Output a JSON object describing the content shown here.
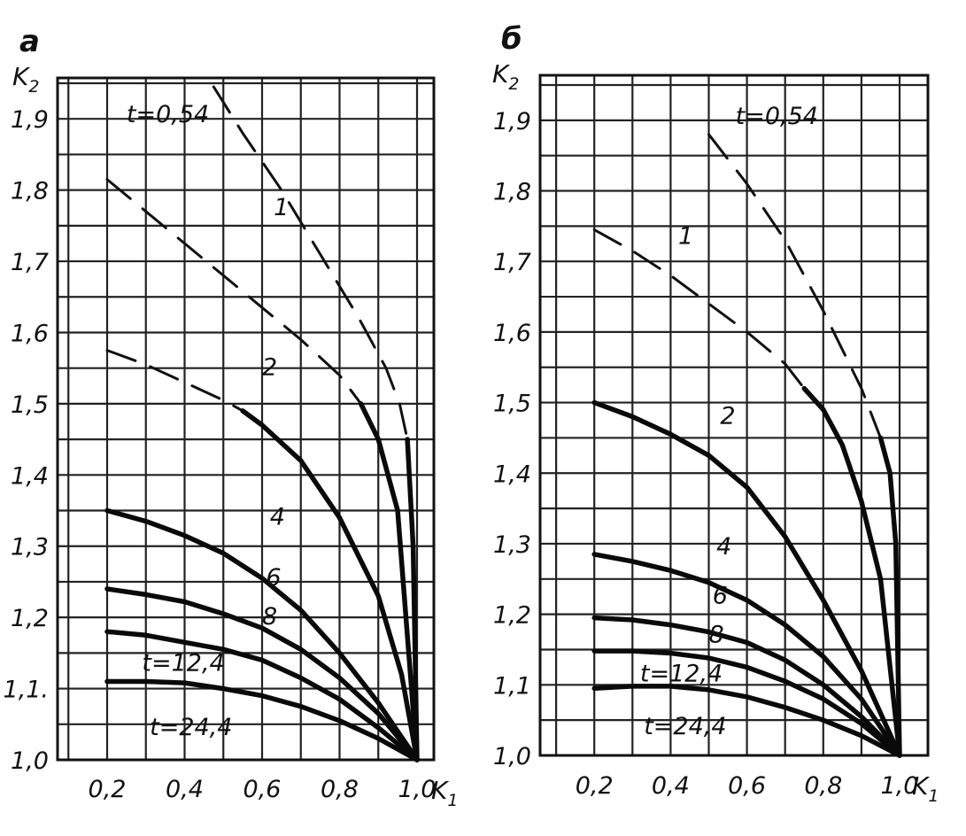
{
  "chart_data": [
    {
      "type": "line",
      "panel_label": "а",
      "ylabel": "K",
      "ylabel_sub": "2",
      "xlabel": "K",
      "xlabel_sub": "1",
      "xlim": [
        0.0,
        1.0
      ],
      "ylim": [
        1.0,
        1.95
      ],
      "grid": true,
      "xticks": [
        0.2,
        0.4,
        0.6,
        0.8,
        1.0
      ],
      "xtick_labels": [
        "0,2",
        "0,4",
        "0,6",
        "0,8",
        "1,0"
      ],
      "yticks": [
        1.0,
        1.1,
        1.2,
        1.3,
        1.4,
        1.5,
        1.6,
        1.7,
        1.8,
        1.9
      ],
      "ytick_labels": [
        "1,0",
        "1,1.",
        "1,2",
        "1,3",
        "1,4",
        "1,5",
        "1,6",
        "1,7",
        "1,8",
        "1,9"
      ],
      "series": [
        {
          "name": "t=0,54",
          "dashed_until": 1.45,
          "points": [
            [
              0.475,
              1.945
            ],
            [
              0.55,
              1.88
            ],
            [
              0.65,
              1.8
            ],
            [
              0.75,
              1.71
            ],
            [
              0.85,
              1.62
            ],
            [
              0.92,
              1.55
            ],
            [
              0.955,
              1.5
            ],
            [
              0.975,
              1.45
            ],
            [
              0.99,
              1.3
            ],
            [
              1.0,
              1.0
            ]
          ]
        },
        {
          "name": "1",
          "dashed_until": 1.5,
          "points": [
            [
              0.2,
              1.815
            ],
            [
              0.3,
              1.77
            ],
            [
              0.4,
              1.725
            ],
            [
              0.5,
              1.68
            ],
            [
              0.6,
              1.635
            ],
            [
              0.7,
              1.59
            ],
            [
              0.8,
              1.54
            ],
            [
              0.855,
              1.5
            ],
            [
              0.9,
              1.45
            ],
            [
              0.95,
              1.35
            ],
            [
              1.0,
              1.0
            ]
          ]
        },
        {
          "name": "2",
          "dashed_until": 1.49,
          "points": [
            [
              0.2,
              1.575
            ],
            [
              0.3,
              1.555
            ],
            [
              0.4,
              1.53
            ],
            [
              0.5,
              1.505
            ],
            [
              0.55,
              1.49
            ],
            [
              0.6,
              1.47
            ],
            [
              0.7,
              1.42
            ],
            [
              0.8,
              1.34
            ],
            [
              0.9,
              1.23
            ],
            [
              0.96,
              1.12
            ],
            [
              1.0,
              1.0
            ]
          ]
        },
        {
          "name": "4",
          "points": [
            [
              0.2,
              1.35
            ],
            [
              0.3,
              1.335
            ],
            [
              0.4,
              1.315
            ],
            [
              0.5,
              1.29
            ],
            [
              0.6,
              1.255
            ],
            [
              0.7,
              1.21
            ],
            [
              0.8,
              1.15
            ],
            [
              0.9,
              1.08
            ],
            [
              1.0,
              1.0
            ]
          ]
        },
        {
          "name": "6",
          "points": [
            [
              0.2,
              1.24
            ],
            [
              0.3,
              1.232
            ],
            [
              0.4,
              1.222
            ],
            [
              0.5,
              1.205
            ],
            [
              0.6,
              1.185
            ],
            [
              0.7,
              1.155
            ],
            [
              0.8,
              1.115
            ],
            [
              0.9,
              1.065
            ],
            [
              1.0,
              1.0
            ]
          ]
        },
        {
          "name": "8",
          "points": [
            [
              0.2,
              1.18
            ],
            [
              0.3,
              1.175
            ],
            [
              0.4,
              1.165
            ],
            [
              0.5,
              1.155
            ],
            [
              0.6,
              1.14
            ],
            [
              0.7,
              1.115
            ],
            [
              0.8,
              1.085
            ],
            [
              0.9,
              1.045
            ],
            [
              1.0,
              1.0
            ]
          ]
        },
        {
          "name": "t=12,4",
          "points": [
            [
              0.2,
              1.11
            ],
            [
              0.3,
              1.11
            ],
            [
              0.4,
              1.108
            ],
            [
              0.5,
              1.1
            ],
            [
              0.6,
              1.09
            ],
            [
              0.7,
              1.075
            ],
            [
              0.8,
              1.055
            ],
            [
              0.9,
              1.03
            ],
            [
              1.0,
              1.0
            ]
          ]
        }
      ],
      "annotations": [
        {
          "text": "t=0,54",
          "x": 0.25,
          "y": 1.895
        },
        {
          "text": "1",
          "x": 0.63,
          "y": 1.765
        },
        {
          "text": "2",
          "x": 0.6,
          "y": 1.54
        },
        {
          "text": "4",
          "x": 0.62,
          "y": 1.33
        },
        {
          "text": "6",
          "x": 0.61,
          "y": 1.245
        },
        {
          "text": "8",
          "x": 0.6,
          "y": 1.19
        },
        {
          "text": "t=12,4",
          "x": 0.29,
          "y": 1.125
        },
        {
          "text": "t=24,4",
          "x": 0.31,
          "y": 1.035
        }
      ]
    },
    {
      "type": "line",
      "panel_label": "б",
      "ylabel": "K",
      "ylabel_sub": "2",
      "xlabel": "K",
      "xlabel_sub": "1",
      "xlim": [
        0.0,
        1.0
      ],
      "ylim": [
        1.0,
        1.95
      ],
      "grid": true,
      "xticks": [
        0.2,
        0.4,
        0.6,
        0.8,
        1.0
      ],
      "xtick_labels": [
        "0,2",
        "0,4",
        "0,6",
        "0,8",
        "1,0"
      ],
      "yticks": [
        1.0,
        1.1,
        1.2,
        1.3,
        1.4,
        1.5,
        1.6,
        1.7,
        1.8,
        1.9
      ],
      "ytick_labels": [
        "1,0",
        "1,1",
        "1,2",
        "1,3",
        "1,4",
        "1,5",
        "1,6",
        "1,7",
        "1,8",
        "1,9"
      ],
      "series": [
        {
          "name": "t=0,54",
          "dashed_until": 1.51,
          "points": [
            [
              0.5,
              1.88
            ],
            [
              0.6,
              1.81
            ],
            [
              0.7,
              1.73
            ],
            [
              0.8,
              1.63
            ],
            [
              0.9,
              1.52
            ],
            [
              0.95,
              1.45
            ],
            [
              0.975,
              1.4
            ],
            [
              0.99,
              1.3
            ],
            [
              1.0,
              1.0
            ]
          ]
        },
        {
          "name": "1",
          "dashed_until": 1.52,
          "points": [
            [
              0.2,
              1.745
            ],
            [
              0.3,
              1.715
            ],
            [
              0.4,
              1.68
            ],
            [
              0.5,
              1.64
            ],
            [
              0.6,
              1.6
            ],
            [
              0.7,
              1.555
            ],
            [
              0.75,
              1.52
            ],
            [
              0.8,
              1.49
            ],
            [
              0.85,
              1.44
            ],
            [
              0.9,
              1.36
            ],
            [
              0.95,
              1.25
            ],
            [
              1.0,
              1.0
            ]
          ]
        },
        {
          "name": "2",
          "points": [
            [
              0.2,
              1.5
            ],
            [
              0.3,
              1.48
            ],
            [
              0.4,
              1.455
            ],
            [
              0.5,
              1.425
            ],
            [
              0.6,
              1.38
            ],
            [
              0.7,
              1.31
            ],
            [
              0.8,
              1.22
            ],
            [
              0.9,
              1.12
            ],
            [
              1.0,
              1.0
            ]
          ]
        },
        {
          "name": "4",
          "points": [
            [
              0.2,
              1.285
            ],
            [
              0.3,
              1.275
            ],
            [
              0.4,
              1.262
            ],
            [
              0.5,
              1.245
            ],
            [
              0.6,
              1.22
            ],
            [
              0.7,
              1.185
            ],
            [
              0.8,
              1.14
            ],
            [
              0.9,
              1.08
            ],
            [
              1.0,
              1.0
            ]
          ]
        },
        {
          "name": "6",
          "points": [
            [
              0.2,
              1.195
            ],
            [
              0.3,
              1.192
            ],
            [
              0.4,
              1.185
            ],
            [
              0.5,
              1.175
            ],
            [
              0.6,
              1.16
            ],
            [
              0.7,
              1.135
            ],
            [
              0.8,
              1.1
            ],
            [
              0.9,
              1.055
            ],
            [
              1.0,
              1.0
            ]
          ]
        },
        {
          "name": "8",
          "points": [
            [
              0.2,
              1.148
            ],
            [
              0.3,
              1.148
            ],
            [
              0.4,
              1.145
            ],
            [
              0.5,
              1.138
            ],
            [
              0.6,
              1.125
            ],
            [
              0.7,
              1.105
            ],
            [
              0.8,
              1.08
            ],
            [
              0.9,
              1.045
            ],
            [
              1.0,
              1.0
            ]
          ]
        },
        {
          "name": "t=12,4",
          "points": [
            [
              0.2,
              1.095
            ],
            [
              0.3,
              1.098
            ],
            [
              0.4,
              1.098
            ],
            [
              0.5,
              1.093
            ],
            [
              0.6,
              1.083
            ],
            [
              0.7,
              1.068
            ],
            [
              0.8,
              1.05
            ],
            [
              0.9,
              1.028
            ],
            [
              1.0,
              1.0
            ]
          ]
        }
      ],
      "annotations": [
        {
          "text": "t=0,54",
          "x": 0.57,
          "y": 1.895
        },
        {
          "text": "1",
          "x": 0.42,
          "y": 1.725
        },
        {
          "text": "2",
          "x": 0.53,
          "y": 1.47
        },
        {
          "text": "4",
          "x": 0.52,
          "y": 1.285
        },
        {
          "text": "6",
          "x": 0.51,
          "y": 1.215
        },
        {
          "text": "8",
          "x": 0.5,
          "y": 1.16
        },
        {
          "text": "t=12,4",
          "x": 0.32,
          "y": 1.105
        },
        {
          "text": "t=24,4",
          "x": 0.33,
          "y": 1.03
        }
      ]
    }
  ]
}
